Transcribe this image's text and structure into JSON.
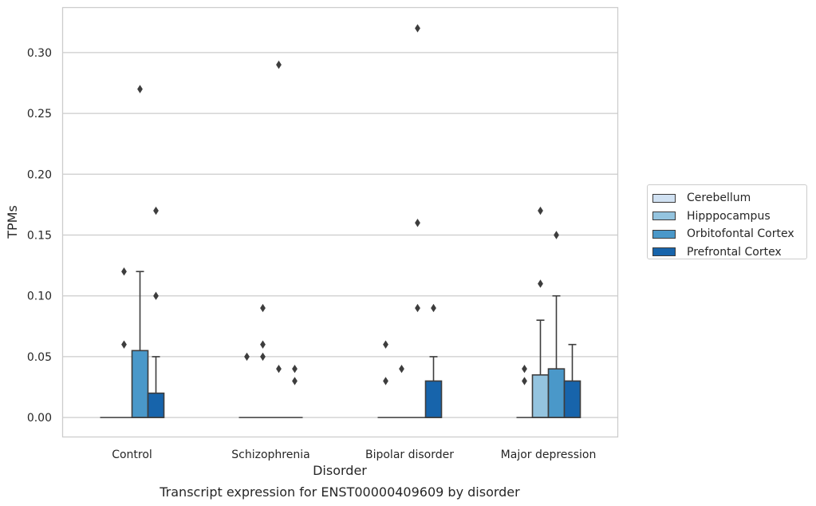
{
  "chart_data": {
    "type": "box",
    "title": "",
    "caption": "Transcript expression for ENST00000409609 by disorder",
    "xlabel": "Disorder",
    "ylabel": "TPMs",
    "ylim": [
      -0.016,
      0.337
    ],
    "yticks": [
      0.0,
      0.05,
      0.1,
      0.15,
      0.2,
      0.25,
      0.3
    ],
    "ytick_labels": [
      "0.00",
      "0.05",
      "0.10",
      "0.15",
      "0.20",
      "0.25",
      "0.30"
    ],
    "grid": "horizontal",
    "legend_position": "right",
    "categories": [
      "Control",
      "Schizophrenia",
      "Bipolar disorder",
      "Major depression"
    ],
    "series": [
      {
        "name": "Cerebellum",
        "color": "#d0e1f2",
        "boxes": [
          {
            "q1": 0,
            "median": 0,
            "q3": 0,
            "whisker_low": 0,
            "whisker_high": 0,
            "outliers": []
          },
          {
            "q1": 0,
            "median": 0,
            "q3": 0,
            "whisker_low": 0,
            "whisker_high": 0,
            "outliers": [
              0.05
            ]
          },
          {
            "q1": 0,
            "median": 0,
            "q3": 0,
            "whisker_low": 0,
            "whisker_high": 0,
            "outliers": [
              0.03,
              0.06
            ]
          },
          {
            "q1": 0,
            "median": 0,
            "q3": 0,
            "whisker_low": 0,
            "whisker_high": 0,
            "outliers": [
              0.03,
              0.04
            ]
          }
        ]
      },
      {
        "name": "Hipppocampus",
        "color": "#94c4df",
        "boxes": [
          {
            "q1": 0,
            "median": 0,
            "q3": 0,
            "whisker_low": 0,
            "whisker_high": 0,
            "outliers": [
              0.06,
              0.12
            ]
          },
          {
            "q1": 0,
            "median": 0,
            "q3": 0,
            "whisker_low": 0,
            "whisker_high": 0,
            "outliers": [
              0.05,
              0.06,
              0.09
            ]
          },
          {
            "q1": 0,
            "median": 0,
            "q3": 0,
            "whisker_low": 0,
            "whisker_high": 0,
            "outliers": [
              0.04
            ]
          },
          {
            "q1": 0,
            "median": 0,
            "q3": 0.035,
            "whisker_low": 0,
            "whisker_high": 0.08,
            "outliers": [
              0.11,
              0.17
            ]
          }
        ]
      },
      {
        "name": "Orbitofontal Cortex",
        "color": "#4a98c9",
        "boxes": [
          {
            "q1": 0,
            "median": 0,
            "q3": 0.055,
            "whisker_low": 0,
            "whisker_high": 0.12,
            "outliers": [
              0.27
            ]
          },
          {
            "q1": 0,
            "median": 0,
            "q3": 0,
            "whisker_low": 0,
            "whisker_high": 0,
            "outliers": [
              0.04,
              0.29
            ]
          },
          {
            "q1": 0,
            "median": 0,
            "q3": 0,
            "whisker_low": 0,
            "whisker_high": 0,
            "outliers": [
              0.09,
              0.16,
              0.32
            ]
          },
          {
            "q1": 0,
            "median": 0,
            "q3": 0.04,
            "whisker_low": 0,
            "whisker_high": 0.1,
            "outliers": [
              0.15
            ]
          }
        ]
      },
      {
        "name": "Prefrontal Cortex",
        "color": "#1764ab",
        "boxes": [
          {
            "q1": 0,
            "median": 0,
            "q3": 0.02,
            "whisker_low": 0,
            "whisker_high": 0.05,
            "outliers": [
              0.1,
              0.17
            ]
          },
          {
            "q1": 0,
            "median": 0,
            "q3": 0,
            "whisker_low": 0,
            "whisker_high": 0,
            "outliers": [
              0.03,
              0.04
            ]
          },
          {
            "q1": 0,
            "median": 0,
            "q3": 0.03,
            "whisker_low": 0,
            "whisker_high": 0.05,
            "outliers": [
              0.09
            ]
          },
          {
            "q1": 0,
            "median": 0,
            "q3": 0.03,
            "whisker_low": 0,
            "whisker_high": 0.06,
            "outliers": []
          }
        ]
      }
    ]
  }
}
